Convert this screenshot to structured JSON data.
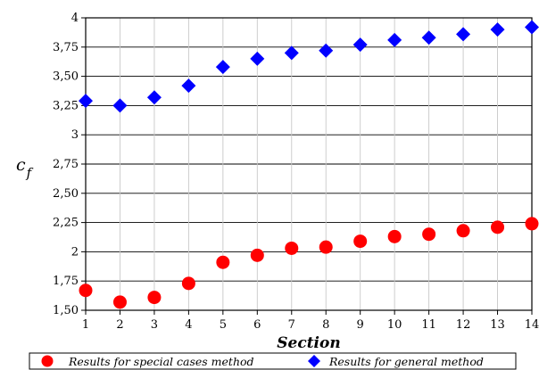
{
  "chart_data": {
    "type": "scatter",
    "title": "",
    "xlabel": "Section",
    "ylabel": "c",
    "ylabel_subscript": "f",
    "xlim": [
      1,
      14
    ],
    "ylim": [
      1.5,
      4
    ],
    "x_ticks": [
      1,
      2,
      3,
      4,
      5,
      6,
      7,
      8,
      9,
      10,
      11,
      12,
      13,
      14
    ],
    "x_tick_labels": [
      "1",
      "2",
      "3",
      "4",
      "5",
      "6",
      "7",
      "8",
      "9",
      "10",
      "11",
      "12",
      "13",
      "14"
    ],
    "y_ticks": [
      1.5,
      1.75,
      2,
      2.25,
      2.5,
      2.75,
      3,
      3.25,
      3.5,
      3.75,
      4
    ],
    "y_tick_labels": [
      "1,50",
      "1,75",
      "2",
      "2,25",
      "2,50",
      "2,75",
      "3",
      "3,25",
      "3,50",
      "3,75",
      "4"
    ],
    "grid": true,
    "legend_position": "bottom",
    "series": [
      {
        "name": "Results for special cases method",
        "marker": "circle",
        "color": "#ff0000",
        "x": [
          1,
          2,
          3,
          4,
          5,
          6,
          7,
          8,
          9,
          10,
          11,
          12,
          13,
          14
        ],
        "y": [
          1.67,
          1.57,
          1.61,
          1.73,
          1.91,
          1.97,
          2.03,
          2.04,
          2.09,
          2.13,
          2.15,
          2.18,
          2.21,
          2.24
        ]
      },
      {
        "name": "Results for general method",
        "marker": "diamond",
        "color": "#0000ff",
        "x": [
          1,
          2,
          3,
          4,
          5,
          6,
          7,
          8,
          9,
          10,
          11,
          12,
          13,
          14
        ],
        "y": [
          3.29,
          3.25,
          3.32,
          3.42,
          3.58,
          3.65,
          3.7,
          3.72,
          3.77,
          3.81,
          3.83,
          3.86,
          3.9,
          3.92
        ]
      }
    ]
  }
}
